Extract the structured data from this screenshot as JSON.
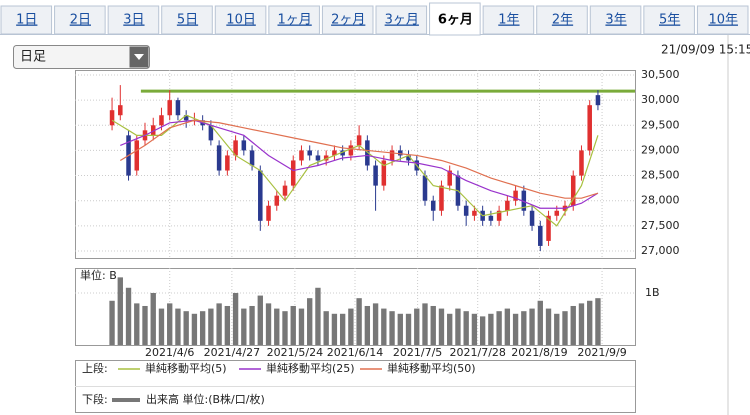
{
  "tabs": [
    "1日",
    "2日",
    "3日",
    "5日",
    "10日",
    "1ヶ月",
    "2ヶ月",
    "3ヶ月",
    "6ヶ月",
    "1年",
    "2年",
    "3年",
    "5年",
    "10年"
  ],
  "active_tab": 8,
  "dropdown": "日足",
  "timestamp": "21/09/09 15:15",
  "chart_data": [
    {
      "type": "candlestick",
      "legend_label": "上段:",
      "xlim": [
        -4.5,
        63.5
      ],
      "ylim": [
        26860,
        30600
      ],
      "yticks": [
        {
          "value": 30500,
          "label": "30,500"
        },
        {
          "value": 30000,
          "label": "30,000"
        },
        {
          "value": 29500,
          "label": "29,500"
        },
        {
          "value": 29000,
          "label": "29,000"
        },
        {
          "value": 28500,
          "label": "28,500"
        },
        {
          "value": 28000,
          "label": "28,000"
        },
        {
          "value": 27500,
          "label": "27,500"
        },
        {
          "value": 27000,
          "label": "27,000"
        }
      ],
      "grid": true,
      "up_color": "#e03030",
      "down_color": "#2a3a8f",
      "hline": {
        "value": 30180,
        "color": "#7aab3a"
      },
      "open": [
        29500,
        29700,
        29300,
        28600,
        29200,
        29300,
        29500,
        29700,
        30000,
        29700,
        29600,
        29600,
        29500,
        29100,
        28600,
        28900,
        29200,
        29000,
        28600,
        27600,
        27900,
        28100,
        28300,
        28800,
        29000,
        28900,
        28800,
        28900,
        29000,
        28900,
        29100,
        29200,
        28700,
        28300,
        28800,
        29000,
        28900,
        28800,
        28500,
        28000,
        27800,
        28300,
        28500,
        27900,
        27700,
        27800,
        27700,
        27600,
        27800,
        28000,
        28200,
        27800,
        27500,
        27200,
        27700,
        27800,
        27900,
        28500,
        29000,
        30100
      ],
      "high": [
        30050,
        30300,
        29400,
        29300,
        29550,
        29650,
        29850,
        30200,
        30050,
        29800,
        29750,
        29700,
        29600,
        29200,
        29000,
        29300,
        29300,
        29100,
        28700,
        28000,
        28200,
        28400,
        28900,
        29100,
        29100,
        29000,
        29000,
        29100,
        29100,
        29200,
        29500,
        29300,
        28800,
        28900,
        29100,
        29100,
        29000,
        28900,
        28600,
        28100,
        28400,
        28700,
        28600,
        28000,
        27900,
        27900,
        27800,
        27900,
        28100,
        28300,
        28300,
        27900,
        27600,
        27800,
        27900,
        28000,
        28600,
        29100,
        30000,
        30200
      ],
      "low": [
        29400,
        29600,
        28400,
        28500,
        29100,
        29200,
        29400,
        29600,
        29600,
        29450,
        29500,
        29400,
        29100,
        28500,
        28500,
        28800,
        28900,
        28600,
        27400,
        27500,
        27800,
        28000,
        28200,
        28700,
        28800,
        28700,
        28700,
        28800,
        28800,
        28800,
        29000,
        28600,
        27800,
        28200,
        28700,
        28800,
        28700,
        28500,
        27900,
        27600,
        27700,
        28200,
        27800,
        27500,
        27600,
        27500,
        27500,
        27500,
        27700,
        27900,
        27700,
        27400,
        27000,
        27100,
        27600,
        27700,
        27800,
        28400,
        28900,
        29800
      ],
      "close": [
        29800,
        29900,
        28500,
        29200,
        29400,
        29500,
        29700,
        30000,
        29700,
        29600,
        29600,
        29500,
        29200,
        28600,
        28900,
        29200,
        29000,
        28700,
        27600,
        27900,
        28100,
        28300,
        28800,
        29000,
        28900,
        28800,
        28900,
        29000,
        28900,
        29100,
        29300,
        28700,
        28300,
        28800,
        29000,
        28900,
        28800,
        28600,
        28000,
        27800,
        28300,
        28600,
        27900,
        27700,
        27800,
        27600,
        27600,
        27800,
        28000,
        28200,
        27800,
        27500,
        27100,
        27700,
        27800,
        27900,
        28500,
        29000,
        29900,
        29900
      ],
      "series": [
        {
          "name": "単純移動平均(5)",
          "color": "#a8c040",
          "x": [
            0,
            3,
            6,
            9,
            12,
            15,
            18,
            21,
            24,
            27,
            30,
            33,
            36,
            39,
            42,
            45,
            48,
            51,
            54,
            57,
            59
          ],
          "values": [
            29600,
            29300,
            29300,
            29700,
            29500,
            28900,
            28600,
            28000,
            28700,
            28900,
            29100,
            28700,
            28900,
            28300,
            28200,
            27700,
            27800,
            27900,
            27500,
            28300,
            29300
          ]
        },
        {
          "name": "単純移動平均(25)",
          "color": "#9933cc",
          "x": [
            1,
            4,
            7,
            10,
            13,
            16,
            19,
            22,
            25,
            28,
            31,
            34,
            37,
            40,
            43,
            46,
            49,
            52,
            55,
            57,
            59
          ],
          "values": [
            29100,
            29300,
            29550,
            29600,
            29450,
            29300,
            28900,
            28600,
            28700,
            28850,
            28900,
            28800,
            28750,
            28650,
            28400,
            28200,
            28050,
            27850,
            27850,
            27950,
            28150
          ]
        },
        {
          "name": "単純移動平均(50)",
          "color": "#e07050",
          "x": [
            1,
            4,
            7,
            10,
            13,
            16,
            19,
            22,
            25,
            28,
            31,
            34,
            37,
            40,
            43,
            46,
            49,
            52,
            55,
            57,
            59
          ],
          "values": [
            28800,
            29100,
            29450,
            29600,
            29550,
            29450,
            29350,
            29250,
            29150,
            29050,
            29000,
            28950,
            28900,
            28800,
            28650,
            28450,
            28300,
            28150,
            28050,
            28050,
            28150
          ]
        }
      ]
    },
    {
      "type": "bar",
      "legend_label": "下段:",
      "unit_label": "単位: B",
      "xlim": [
        -4.5,
        63.5
      ],
      "ylim": [
        0,
        1.48
      ],
      "yticks": [
        {
          "value": 1,
          "label": "1B"
        }
      ],
      "xticks": [
        {
          "value": 7.0,
          "label": "2021/4/6"
        },
        {
          "value": 14.55,
          "label": "2021/4/27"
        },
        {
          "value": 22.2,
          "label": "2021/5/24"
        },
        {
          "value": 29.5,
          "label": "2021/6/14"
        },
        {
          "value": 37.1,
          "label": "2021/7/5"
        },
        {
          "value": 44.4,
          "label": "2021/7/28"
        },
        {
          "value": 51.9,
          "label": "2021/8/19"
        },
        {
          "value": 59.5,
          "label": "2021/9/9"
        }
      ],
      "series": [
        {
          "name": "出来高 単位:(B株/口/枚)",
          "color": "#777777",
          "values": [
            0.85,
            1.3,
            1.1,
            0.8,
            0.75,
            1.0,
            0.7,
            0.8,
            0.7,
            0.65,
            0.6,
            0.65,
            0.7,
            0.8,
            0.75,
            1.0,
            0.7,
            0.75,
            0.95,
            0.8,
            0.7,
            0.65,
            0.75,
            0.7,
            0.9,
            1.1,
            0.65,
            0.6,
            0.6,
            0.7,
            0.9,
            0.75,
            0.8,
            0.7,
            0.65,
            0.6,
            0.6,
            0.7,
            0.8,
            0.75,
            0.7,
            0.6,
            0.7,
            0.65,
            0.6,
            0.55,
            0.6,
            0.65,
            0.7,
            0.6,
            0.65,
            0.7,
            0.85,
            0.7,
            0.6,
            0.65,
            0.75,
            0.8,
            0.85,
            0.9
          ]
        }
      ]
    }
  ]
}
